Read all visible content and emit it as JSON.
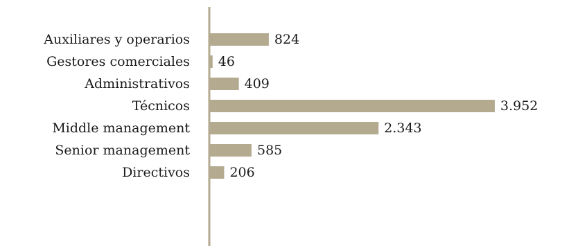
{
  "colors": {
    "bar": "#b3aa90",
    "axis": "#b3aa90",
    "text": "#1a1a1a",
    "background": "#ffffff"
  },
  "chart_data": {
    "type": "bar",
    "orientation": "horizontal",
    "categories": [
      "Auxiliares y operarios",
      "Gestores comerciales",
      "Administrativos",
      "Técnicos",
      "Middle management",
      "Senior management",
      "Directivos"
    ],
    "values": [
      824,
      46,
      409,
      3952,
      2343,
      585,
      206
    ],
    "value_labels": [
      "824",
      "46",
      "409",
      "3.952",
      "2.343",
      "585",
      "206"
    ],
    "title": "",
    "xlabel": "",
    "ylabel": "",
    "xlim": [
      0,
      3952
    ],
    "grid": false,
    "legend": "none"
  }
}
